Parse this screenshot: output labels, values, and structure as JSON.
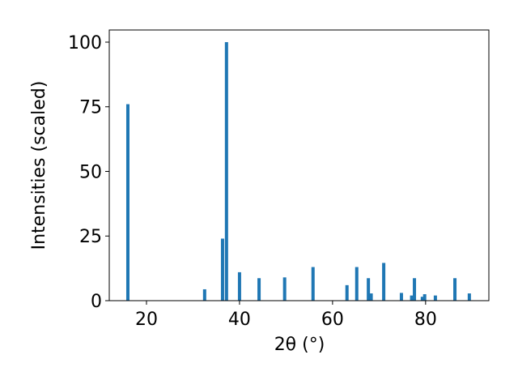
{
  "chart_data": {
    "type": "bar",
    "xlabel": "2θ (°)",
    "ylabel": "Intensities (scaled)",
    "color": "#1f77b4",
    "x": [
      16.0,
      32.5,
      36.35,
      37.2,
      40.0,
      44.2,
      49.7,
      55.8,
      63.1,
      65.2,
      67.7,
      68.3,
      71.0,
      74.8,
      77.0,
      77.6,
      79.3,
      79.8,
      82.1,
      86.3,
      89.4
    ],
    "values": [
      76,
      4.4,
      24,
      100,
      11,
      8.7,
      9,
      13,
      6,
      13,
      8.7,
      2.8,
      14.6,
      3,
      2,
      8.7,
      1.5,
      2.5,
      2,
      8.7,
      2.8
    ],
    "xlim": [
      12.0,
      93.6
    ],
    "ylim": [
      0,
      104.7
    ],
    "xticks": [
      20,
      40,
      60,
      80
    ],
    "yticks": [
      0,
      25,
      50,
      75,
      100
    ]
  }
}
